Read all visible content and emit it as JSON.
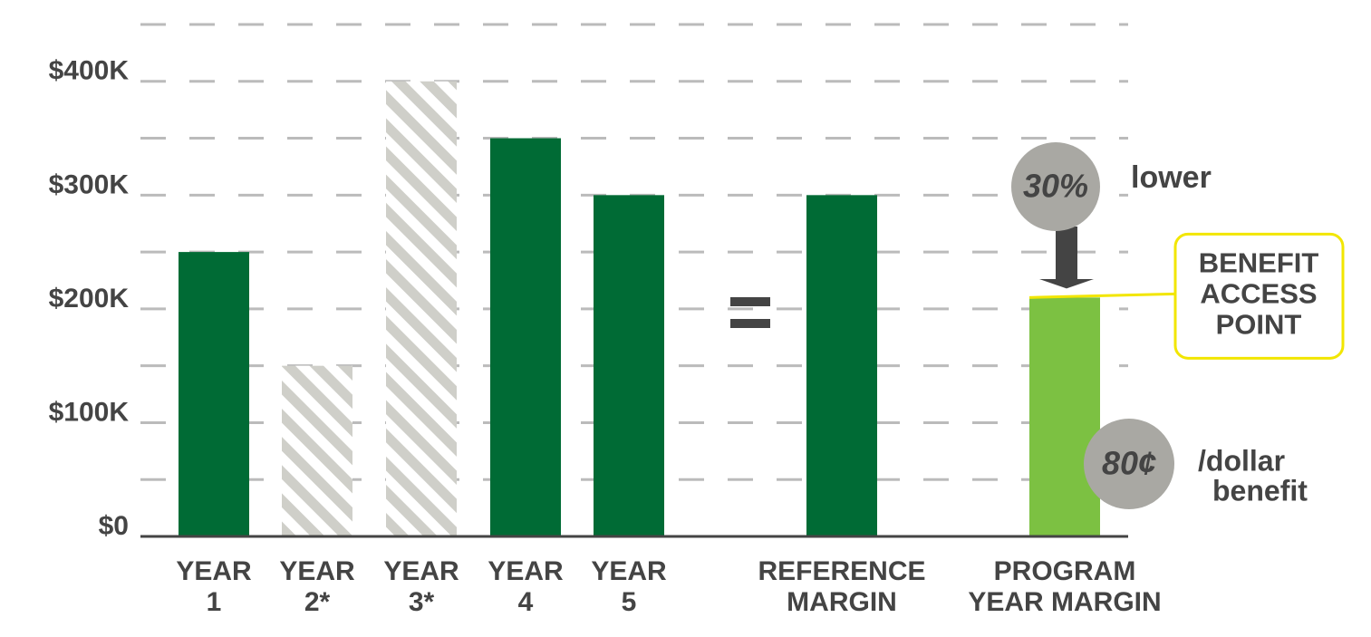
{
  "chart_data": {
    "type": "bar",
    "categories": [
      [
        "YEAR",
        "1"
      ],
      [
        "YEAR",
        "2*"
      ],
      [
        "YEAR",
        "3*"
      ],
      [
        "YEAR",
        "4"
      ],
      [
        "YEAR",
        "5"
      ],
      [
        "REFERENCE",
        "MARGIN"
      ],
      [
        "PROGRAM",
        "YEAR MARGIN"
      ]
    ],
    "values": [
      250000,
      150000,
      400000,
      350000,
      300000,
      300000,
      210000
    ],
    "colors": [
      "#006b35",
      "#cfcfc9",
      "#cfcfc9",
      "#006b35",
      "#006b35",
      "#006b35",
      "#7cc142"
    ],
    "hatched": [
      false,
      true,
      true,
      false,
      false,
      false,
      false
    ],
    "ylim": [
      0,
      450000
    ],
    "yticks": [
      {
        "value": 0,
        "label": "$0"
      },
      {
        "value": 100000,
        "label": "$100K"
      },
      {
        "value": 200000,
        "label": "$200K"
      },
      {
        "value": 300000,
        "label": "$300K"
      },
      {
        "value": 400000,
        "label": "$400K"
      }
    ],
    "grid": true,
    "annotations": {
      "reduction": "30%",
      "reduction_text": "lower",
      "callout": [
        "BENEFIT",
        "ACCESS",
        "POINT"
      ],
      "rate": "80¢",
      "rate_text": [
        "/dollar",
        "benefit"
      ]
    }
  }
}
